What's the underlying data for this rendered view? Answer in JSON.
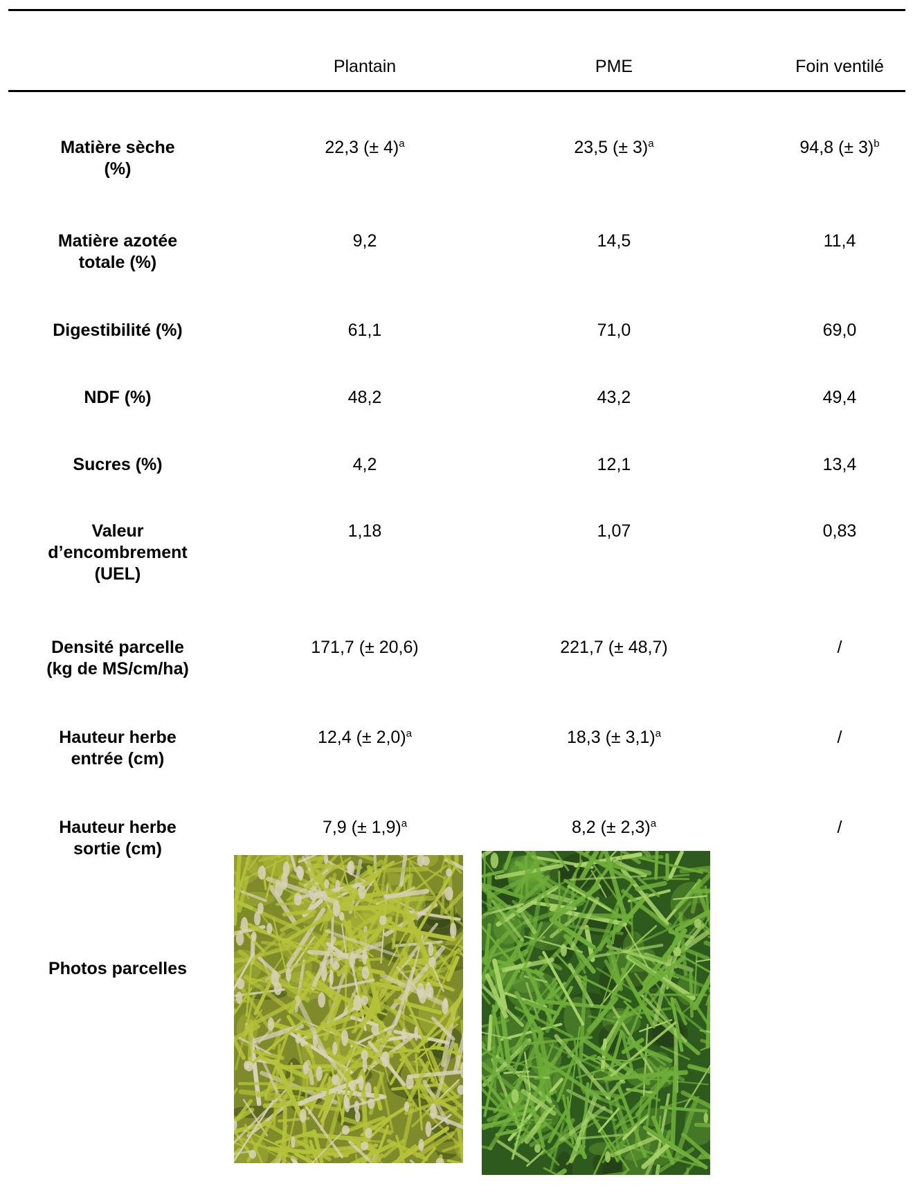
{
  "columns": [
    "Plantain",
    "PME",
    "Foin ventilé"
  ],
  "rows": [
    {
      "label": "Matière sèche (%)",
      "label_lines": [
        "Matière sèche",
        "(%)"
      ],
      "cells": [
        {
          "value": "22,3 (± 4)",
          "sup": "a"
        },
        {
          "value": "23,5 (± 3)",
          "sup": "a"
        },
        {
          "value": "94,8 (± 3)",
          "sup": "b"
        }
      ]
    },
    {
      "label": "Matière azotée totale (%)",
      "label_lines": [
        "Matière azotée",
        "totale (%)"
      ],
      "cells": [
        {
          "value": "9,2",
          "sup": ""
        },
        {
          "value": "14,5",
          "sup": ""
        },
        {
          "value": "11,4",
          "sup": ""
        }
      ]
    },
    {
      "label": "Digestibilité (%)",
      "label_lines": [
        "Digestibilité (%)"
      ],
      "cells": [
        {
          "value": "61,1",
          "sup": ""
        },
        {
          "value": "71,0",
          "sup": ""
        },
        {
          "value": "69,0",
          "sup": ""
        }
      ]
    },
    {
      "label": "NDF (%)",
      "label_lines": [
        "NDF (%)"
      ],
      "cells": [
        {
          "value": "48,2",
          "sup": ""
        },
        {
          "value": "43,2",
          "sup": ""
        },
        {
          "value": "49,4",
          "sup": ""
        }
      ]
    },
    {
      "label": "Sucres (%)",
      "label_lines": [
        "Sucres (%)"
      ],
      "cells": [
        {
          "value": "4,2",
          "sup": ""
        },
        {
          "value": "12,1",
          "sup": ""
        },
        {
          "value": "13,4",
          "sup": ""
        }
      ]
    },
    {
      "label": "Valeur d’encombrement (UEL)",
      "label_lines": [
        "Valeur",
        "d’encombrement",
        "(UEL)"
      ],
      "cells": [
        {
          "value": "1,18",
          "sup": ""
        },
        {
          "value": "1,07",
          "sup": ""
        },
        {
          "value": "0,83",
          "sup": ""
        }
      ]
    },
    {
      "label": "Densité parcelle (kg de MS/cm/ha)",
      "label_lines": [
        "Densité parcelle",
        "(kg de MS/cm/ha)"
      ],
      "cells": [
        {
          "value": "171,7 (± 20,6)",
          "sup": ""
        },
        {
          "value": "221,7 (± 48,7)",
          "sup": ""
        },
        {
          "value": "/",
          "sup": ""
        }
      ]
    },
    {
      "label": "Hauteur herbe entrée (cm)",
      "label_lines": [
        "Hauteur herbe",
        "entrée (cm)"
      ],
      "cells": [
        {
          "value": "12,4 (± 2,0)",
          "sup": "a"
        },
        {
          "value": "18,3 (± 3,1)",
          "sup": "a"
        },
        {
          "value": "/",
          "sup": ""
        }
      ]
    },
    {
      "label": "Hauteur herbe sortie (cm)",
      "label_lines": [
        "Hauteur herbe",
        "sortie (cm)"
      ],
      "cells": [
        {
          "value": "7,9 (± 1,9)",
          "sup": "a"
        },
        {
          "value": "8,2 (± 2,3)",
          "sup": "a"
        },
        {
          "value": "/",
          "sup": ""
        }
      ]
    }
  ],
  "photos_label": "Photos parcelles",
  "photos": [
    {
      "subject": "plantain plot",
      "base_color": "#7f8a2a",
      "leaf_color": "#b6c33a",
      "accent": "#d8d2b8"
    },
    {
      "subject": "PME plot",
      "base_color": "#2f5a1e",
      "leaf_color": "#6fae3a",
      "accent": "#a9d36a"
    }
  ]
}
